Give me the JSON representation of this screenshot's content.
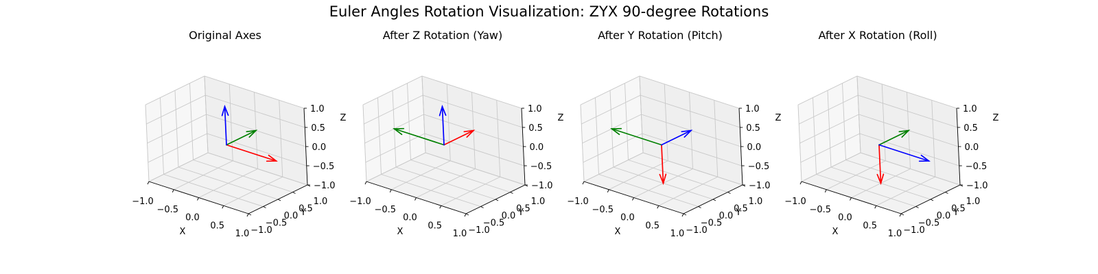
{
  "suptitle": "Euler Angles Rotation Visualization: ZYX 90-degree Rotations",
  "colors": {
    "x_axis": "#ff0000",
    "y_axis": "#008000",
    "z_axis": "#0000ff",
    "grid": "#b0b0b0",
    "pane_floor": "#f2f2f2",
    "pane_wall": "#f0f0f0"
  },
  "chart_data": [
    {
      "type": "3d-quiver",
      "title": "Original Axes",
      "xlabel": "X",
      "ylabel": "Y",
      "zlabel": "Z",
      "xlim": [
        -1,
        1
      ],
      "ylim": [
        -1,
        1
      ],
      "zlim": [
        -1,
        1
      ],
      "xticks": [
        "−1.0",
        "−0.5",
        "0.0",
        "0.5",
        "1.0"
      ],
      "yticks": [
        "−1.0",
        "−0.5",
        "0.0",
        "0.5",
        "1.0"
      ],
      "zticks": [
        "−1.0",
        "−0.5",
        "0.0",
        "0.5",
        "1.0"
      ],
      "grid": true,
      "vectors": [
        {
          "axis": "x",
          "color": "#ff0000",
          "dir": [
            1,
            0,
            0
          ]
        },
        {
          "axis": "y",
          "color": "#008000",
          "dir": [
            0,
            1,
            0
          ]
        },
        {
          "axis": "z",
          "color": "#0000ff",
          "dir": [
            0,
            0,
            1
          ]
        }
      ]
    },
    {
      "type": "3d-quiver",
      "title": "After Z Rotation (Yaw)",
      "xlabel": "X",
      "ylabel": "Y",
      "zlabel": "Z",
      "xlim": [
        -1,
        1
      ],
      "ylim": [
        -1,
        1
      ],
      "zlim": [
        -1,
        1
      ],
      "xticks": [
        "−1.0",
        "−0.5",
        "0.0",
        "0.5",
        "1.0"
      ],
      "yticks": [
        "−1.0",
        "−0.5",
        "0.0",
        "0.5",
        "1.0"
      ],
      "zticks": [
        "−1.0",
        "−0.5",
        "0.0",
        "0.5",
        "1.0"
      ],
      "grid": true,
      "vectors": [
        {
          "axis": "x",
          "color": "#ff0000",
          "dir": [
            0,
            1,
            0
          ]
        },
        {
          "axis": "y",
          "color": "#008000",
          "dir": [
            -1,
            0,
            0
          ]
        },
        {
          "axis": "z",
          "color": "#0000ff",
          "dir": [
            0,
            0,
            1
          ]
        }
      ]
    },
    {
      "type": "3d-quiver",
      "title": "After Y Rotation (Pitch)",
      "xlabel": "X",
      "ylabel": "Y",
      "zlabel": "Z",
      "xlim": [
        -1,
        1
      ],
      "ylim": [
        -1,
        1
      ],
      "zlim": [
        -1,
        1
      ],
      "xticks": [
        "−1.0",
        "−0.5",
        "0.0",
        "0.5",
        "1.0"
      ],
      "yticks": [
        "−1.0",
        "−0.5",
        "0.0",
        "0.5",
        "1.0"
      ],
      "zticks": [
        "−1.0",
        "−0.5",
        "0.0",
        "0.5",
        "1.0"
      ],
      "grid": true,
      "vectors": [
        {
          "axis": "x",
          "color": "#ff0000",
          "dir": [
            0,
            0,
            -1
          ]
        },
        {
          "axis": "y",
          "color": "#008000",
          "dir": [
            -1,
            0,
            0
          ]
        },
        {
          "axis": "z",
          "color": "#0000ff",
          "dir": [
            0,
            1,
            0
          ]
        }
      ]
    },
    {
      "type": "3d-quiver",
      "title": "After X Rotation (Roll)",
      "xlabel": "X",
      "ylabel": "Y",
      "zlabel": "Z",
      "xlim": [
        -1,
        1
      ],
      "ylim": [
        -1,
        1
      ],
      "zlim": [
        -1,
        1
      ],
      "xticks": [
        "−1.0",
        "−0.5",
        "0.0",
        "0.5",
        "1.0"
      ],
      "yticks": [
        "−1.0",
        "−0.5",
        "0.0",
        "0.5",
        "1.0"
      ],
      "zticks": [
        "−1.0",
        "−0.5",
        "0.0",
        "0.5",
        "1.0"
      ],
      "grid": true,
      "vectors": [
        {
          "axis": "x",
          "color": "#ff0000",
          "dir": [
            0,
            0,
            -1
          ]
        },
        {
          "axis": "y",
          "color": "#008000",
          "dir": [
            0,
            1,
            0
          ]
        },
        {
          "axis": "z",
          "color": "#0000ff",
          "dir": [
            1,
            0,
            0
          ]
        }
      ]
    }
  ]
}
